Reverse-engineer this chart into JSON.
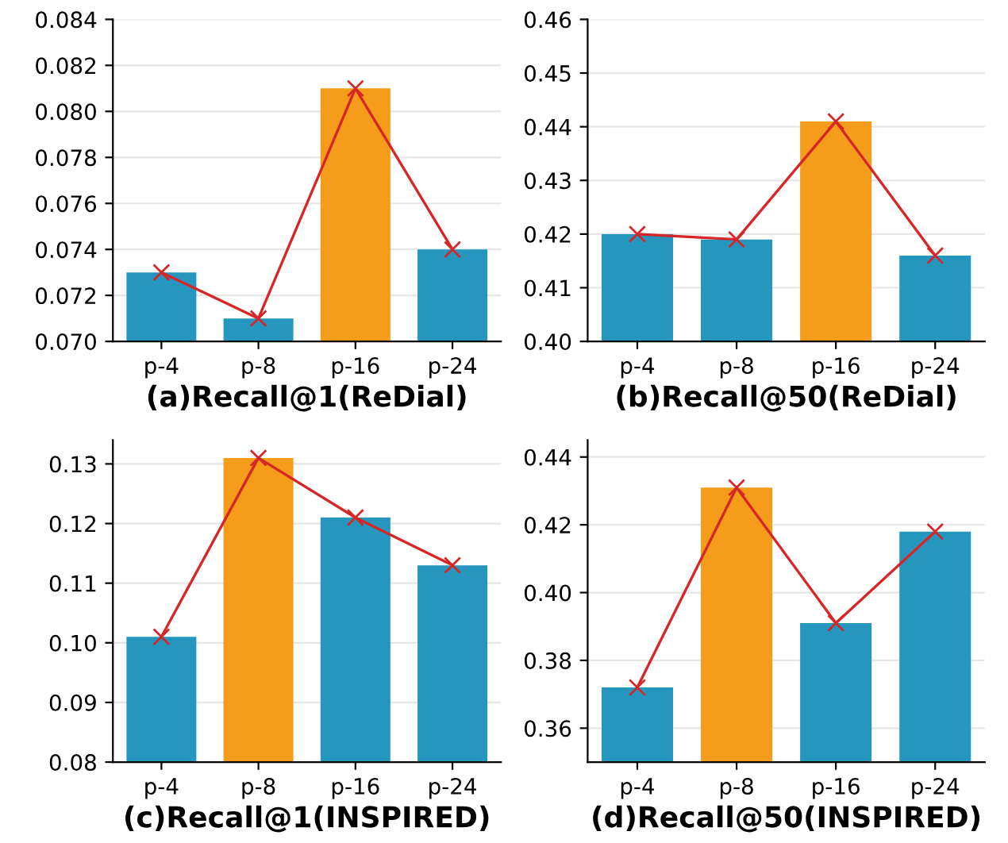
{
  "chart_data": [
    {
      "type": "bar",
      "xlabel": "(a)Recall@1(ReDial)",
      "categories": [
        "p-4",
        "p-8",
        "p-16",
        "p-24"
      ],
      "ylim": [
        0.07,
        0.084
      ],
      "yticks": [
        {
          "value": 0.07,
          "label": "0.070"
        },
        {
          "value": 0.072,
          "label": "0.072"
        },
        {
          "value": 0.074,
          "label": "0.074"
        },
        {
          "value": 0.076,
          "label": "0.076"
        },
        {
          "value": 0.078,
          "label": "0.078"
        },
        {
          "value": 0.08,
          "label": "0.080"
        },
        {
          "value": 0.082,
          "label": "0.082"
        },
        {
          "value": 0.084,
          "label": "0.084"
        }
      ],
      "grid": "y",
      "series": [
        {
          "colors": [
            "#2596be",
            "#2596be",
            "#f59c1a",
            "#2596be"
          ],
          "values": [
            0.073,
            0.071,
            0.081,
            0.074
          ]
        },
        {
          "type": "line",
          "color": "#d62728",
          "marker": "cross",
          "values": [
            0.073,
            0.071,
            0.081,
            0.074
          ]
        }
      ]
    },
    {
      "type": "bar",
      "xlabel": "(b)Recall@50(ReDial)",
      "categories": [
        "p-4",
        "p-8",
        "p-16",
        "p-24"
      ],
      "ylim": [
        0.4,
        0.46
      ],
      "yticks": [
        {
          "value": 0.4,
          "label": "0.40"
        },
        {
          "value": 0.41,
          "label": "0.41"
        },
        {
          "value": 0.42,
          "label": "0.42"
        },
        {
          "value": 0.43,
          "label": "0.43"
        },
        {
          "value": 0.44,
          "label": "0.44"
        },
        {
          "value": 0.45,
          "label": "0.45"
        },
        {
          "value": 0.46,
          "label": "0.46"
        }
      ],
      "grid": "y",
      "series": [
        {
          "colors": [
            "#2596be",
            "#2596be",
            "#f59c1a",
            "#2596be"
          ],
          "values": [
            0.42,
            0.419,
            0.441,
            0.416
          ]
        },
        {
          "type": "line",
          "color": "#d62728",
          "marker": "cross",
          "values": [
            0.42,
            0.419,
            0.441,
            0.416
          ]
        }
      ]
    },
    {
      "type": "bar",
      "xlabel": "(c)Recall@1(INSPIRED)",
      "categories": [
        "p-4",
        "p-8",
        "p-16",
        "p-24"
      ],
      "ylim": [
        0.08,
        0.134
      ],
      "yticks": [
        {
          "value": 0.08,
          "label": "0.08"
        },
        {
          "value": 0.09,
          "label": "0.09"
        },
        {
          "value": 0.1,
          "label": "0.10"
        },
        {
          "value": 0.11,
          "label": "0.11"
        },
        {
          "value": 0.12,
          "label": "0.12"
        },
        {
          "value": 0.13,
          "label": "0.13"
        }
      ],
      "grid": "y",
      "series": [
        {
          "colors": [
            "#2596be",
            "#f59c1a",
            "#2596be",
            "#2596be"
          ],
          "values": [
            0.101,
            0.131,
            0.121,
            0.113
          ]
        },
        {
          "type": "line",
          "color": "#d62728",
          "marker": "cross",
          "values": [
            0.101,
            0.131,
            0.121,
            0.113
          ]
        }
      ]
    },
    {
      "type": "bar",
      "xlabel": "(d)Recall@50(INSPIRED)",
      "categories": [
        "p-4",
        "p-8",
        "p-16",
        "p-24"
      ],
      "ylim": [
        0.35,
        0.445
      ],
      "yticks": [
        {
          "value": 0.36,
          "label": "0.36"
        },
        {
          "value": 0.38,
          "label": "0.38"
        },
        {
          "value": 0.4,
          "label": "0.40"
        },
        {
          "value": 0.42,
          "label": "0.42"
        },
        {
          "value": 0.44,
          "label": "0.44"
        }
      ],
      "grid": "y",
      "series": [
        {
          "colors": [
            "#2596be",
            "#f59c1a",
            "#2596be",
            "#2596be"
          ],
          "values": [
            0.372,
            0.431,
            0.391,
            0.418
          ]
        },
        {
          "type": "line",
          "color": "#d62728",
          "marker": "cross",
          "values": [
            0.372,
            0.431,
            0.391,
            0.418
          ]
        }
      ]
    }
  ]
}
